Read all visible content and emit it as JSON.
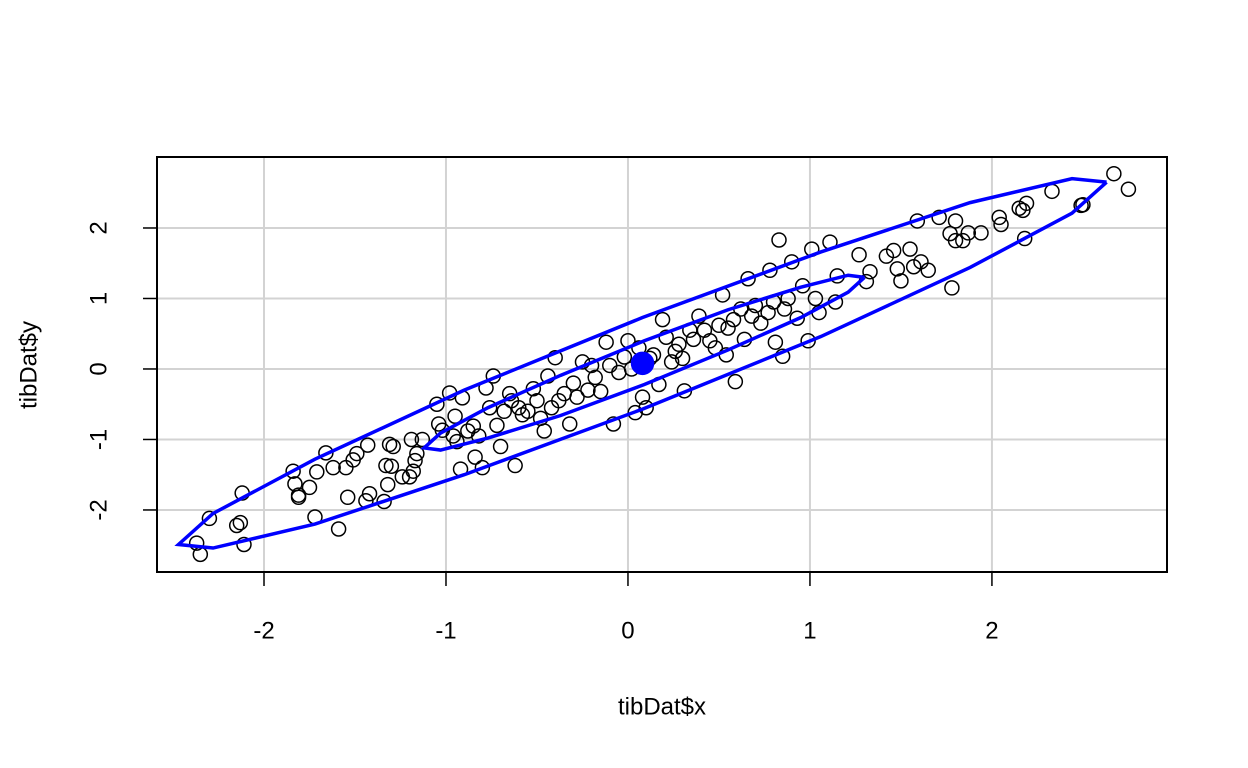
{
  "chart_data": {
    "type": "scatter",
    "xlabel": "tibDat$x",
    "ylabel": "tibDat$y",
    "xlim": [
      -2.588,
      2.962
    ],
    "ylim": [
      -2.88,
      3.007
    ],
    "xticks": [
      -2,
      -1,
      0,
      1,
      2
    ],
    "yticks": [
      -2,
      -1,
      0,
      1,
      2
    ],
    "grid": true,
    "series": [
      {
        "color": "#000000",
        "marker": "open-circle",
        "x": [
          -2.37,
          -2.35,
          -2.3,
          -2.15,
          -2.13,
          -2.12,
          -2.11,
          -1.84,
          -1.83,
          -1.81,
          -1.81,
          -1.75,
          -1.72,
          -1.71,
          -1.66,
          -1.62,
          -1.59,
          -1.55,
          -1.54,
          -1.51,
          -1.49,
          -1.44,
          -1.43,
          -1.42,
          -1.34,
          -1.33,
          -1.32,
          -1.31,
          -1.3,
          -1.29,
          -1.24,
          -1.2,
          -1.19,
          -1.18,
          -1.17,
          -1.16,
          -1.13,
          -1.05,
          -1.04,
          -1.02,
          -0.98,
          -0.96,
          -0.95,
          -0.94,
          -0.92,
          -0.91,
          -0.88,
          -0.85,
          -0.84,
          -0.82,
          -0.8,
          -0.78,
          -0.76,
          -0.74,
          -0.72,
          -0.7,
          -0.68,
          -0.65,
          -0.64,
          -0.62,
          -0.6,
          -0.58,
          -0.55,
          -0.52,
          -0.5,
          -0.48,
          -0.46,
          -0.44,
          -0.42,
          -0.4,
          -0.38,
          -0.35,
          -0.32,
          -0.3,
          -0.28,
          -0.25,
          -0.22,
          -0.2,
          -0.18,
          -0.15,
          -0.12,
          -0.1,
          -0.08,
          -0.05,
          -0.02,
          0.0,
          0.02,
          0.04,
          0.06,
          0.08,
          0.1,
          0.12,
          0.14,
          0.17,
          0.19,
          0.21,
          0.24,
          0.26,
          0.28,
          0.3,
          0.31,
          0.34,
          0.36,
          0.39,
          0.42,
          0.45,
          0.48,
          0.5,
          0.52,
          0.54,
          0.55,
          0.58,
          0.59,
          0.62,
          0.64,
          0.66,
          0.68,
          0.7,
          0.73,
          0.77,
          0.78,
          0.8,
          0.81,
          0.83,
          0.85,
          0.86,
          0.88,
          0.9,
          0.93,
          0.96,
          0.99,
          1.01,
          1.03,
          1.05,
          1.11,
          1.14,
          1.15,
          1.27,
          1.31,
          1.33,
          1.42,
          1.46,
          1.48,
          1.5,
          1.55,
          1.57,
          1.59,
          1.61,
          1.65,
          1.71,
          1.77,
          1.78,
          1.8,
          1.8,
          1.84,
          1.87,
          1.94,
          2.04,
          2.05,
          2.15,
          2.17,
          2.19,
          2.18,
          2.33,
          2.49,
          2.5,
          2.67,
          2.75
        ],
        "y": [
          -2.47,
          -2.63,
          -2.12,
          -2.22,
          -2.18,
          -1.76,
          -2.49,
          -1.45,
          -1.63,
          -1.82,
          -1.79,
          -1.68,
          -2.1,
          -1.46,
          -1.19,
          -1.4,
          -2.27,
          -1.4,
          -1.82,
          -1.29,
          -1.2,
          -1.87,
          -1.08,
          -1.77,
          -1.88,
          -1.37,
          -1.64,
          -1.07,
          -1.38,
          -1.1,
          -1.53,
          -1.53,
          -1.0,
          -1.45,
          -1.3,
          -1.2,
          -1.0,
          -0.5,
          -0.78,
          -0.87,
          -0.34,
          -0.95,
          -0.67,
          -1.03,
          -1.42,
          -0.41,
          -0.88,
          -0.81,
          -1.25,
          -0.95,
          -1.4,
          -0.27,
          -0.55,
          -0.1,
          -0.8,
          -1.1,
          -0.6,
          -0.35,
          -0.45,
          -1.37,
          -0.55,
          -0.65,
          -0.6,
          -0.28,
          -0.45,
          -0.7,
          -0.88,
          -0.1,
          -0.55,
          0.16,
          -0.45,
          -0.35,
          -0.78,
          -0.2,
          -0.4,
          0.1,
          -0.3,
          0.05,
          -0.12,
          -0.32,
          0.38,
          0.05,
          -0.78,
          -0.05,
          0.17,
          0.4,
          0.0,
          -0.62,
          0.3,
          -0.4,
          -0.55,
          0.15,
          0.2,
          -0.22,
          0.7,
          0.45,
          0.1,
          0.25,
          0.35,
          0.15,
          -0.31,
          0.55,
          0.42,
          0.75,
          0.55,
          0.4,
          0.3,
          0.62,
          1.05,
          0.2,
          0.58,
          0.7,
          -0.18,
          0.85,
          0.42,
          1.28,
          0.75,
          0.9,
          0.65,
          0.8,
          1.4,
          0.95,
          0.38,
          1.83,
          0.18,
          0.85,
          1.0,
          1.52,
          0.72,
          1.18,
          0.4,
          1.7,
          1.0,
          0.8,
          1.8,
          0.95,
          1.32,
          1.62,
          1.24,
          1.38,
          1.6,
          1.68,
          1.42,
          1.25,
          1.7,
          1.45,
          2.1,
          1.52,
          1.4,
          2.15,
          1.92,
          1.15,
          2.1,
          1.82,
          1.82,
          1.93,
          1.93,
          2.15,
          2.05,
          2.28,
          2.25,
          2.35,
          1.85,
          2.52,
          2.32,
          2.33,
          2.77,
          2.55
        ]
      },
      {
        "color": "#0000ff",
        "marker": "line",
        "x": [
          2.63,
          2.44,
          1.88,
          1.06,
          0.08,
          -0.9,
          -1.72,
          -2.28,
          -2.47,
          -2.28,
          -1.72,
          -0.9,
          0.08,
          1.06,
          1.88,
          2.44,
          2.63
        ],
        "y": [
          2.65,
          2.21,
          1.44,
          0.46,
          -0.57,
          -1.5,
          -2.2,
          -2.54,
          -2.49,
          -2.05,
          -1.28,
          -0.3,
          0.73,
          1.66,
          2.36,
          2.7,
          2.65
        ]
      },
      {
        "color": "#0000ff",
        "marker": "line",
        "x": [
          1.3,
          1.21,
          0.95,
          0.55,
          0.09,
          -0.37,
          -0.77,
          -1.03,
          -1.12,
          -1.03,
          -0.77,
          -0.37,
          0.09,
          0.55,
          0.95,
          1.21,
          1.3
        ],
        "y": [
          1.3,
          1.09,
          0.73,
          0.27,
          -0.22,
          -0.66,
          -0.98,
          -1.15,
          -1.12,
          -0.91,
          -0.55,
          -0.09,
          0.4,
          0.84,
          1.16,
          1.33,
          1.3
        ]
      },
      {
        "color": "#0000ff",
        "marker": "filled-circle",
        "x": [
          0.08
        ],
        "y": [
          0.08
        ]
      }
    ]
  }
}
